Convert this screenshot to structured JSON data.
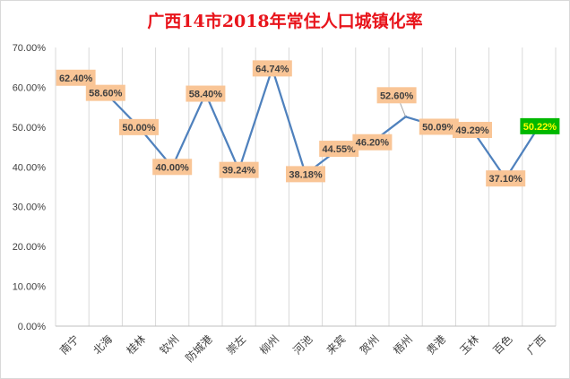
{
  "chart_data": {
    "type": "line",
    "title": "广西14市2018年常住人口城镇化率",
    "xlabel": "",
    "ylabel": "",
    "categories": [
      "南宁",
      "北海",
      "桂林",
      "钦州",
      "防城港",
      "崇左",
      "柳州",
      "河池",
      "来宾",
      "贺州",
      "梧州",
      "贵港",
      "玉林",
      "百色",
      "广西"
    ],
    "series": [
      {
        "values": [
          62.4,
          58.6,
          50.0,
          40.0,
          58.4,
          39.24,
          64.74,
          38.18,
          44.55,
          46.2,
          52.6,
          50.09,
          49.29,
          37.1,
          50.22
        ],
        "labels": [
          "62.40%",
          "58.60%",
          "50.00%",
          "40.00%",
          "58.40%",
          "39.24%",
          "64.74%",
          "38.18%",
          "44.55%",
          "46.20%",
          "52.60%",
          "50.09%",
          "49.29%",
          "37.10%",
          "50.22%"
        ]
      }
    ],
    "ylim": [
      0,
      70
    ],
    "yticks": [
      "0.00%",
      "10.00%",
      "20.00%",
      "30.00%",
      "40.00%",
      "50.00%",
      "60.00%",
      "70.00%"
    ],
    "grid": "vertical",
    "legend": "none",
    "highlight_category": "广西",
    "colors": {
      "line": "#4f81bd",
      "label_fill": "#f9c596",
      "highlight_fill": "#00b800",
      "highlight_text": "#ffff00",
      "title": "#e8141b",
      "grid": "#d9d9d9"
    }
  }
}
